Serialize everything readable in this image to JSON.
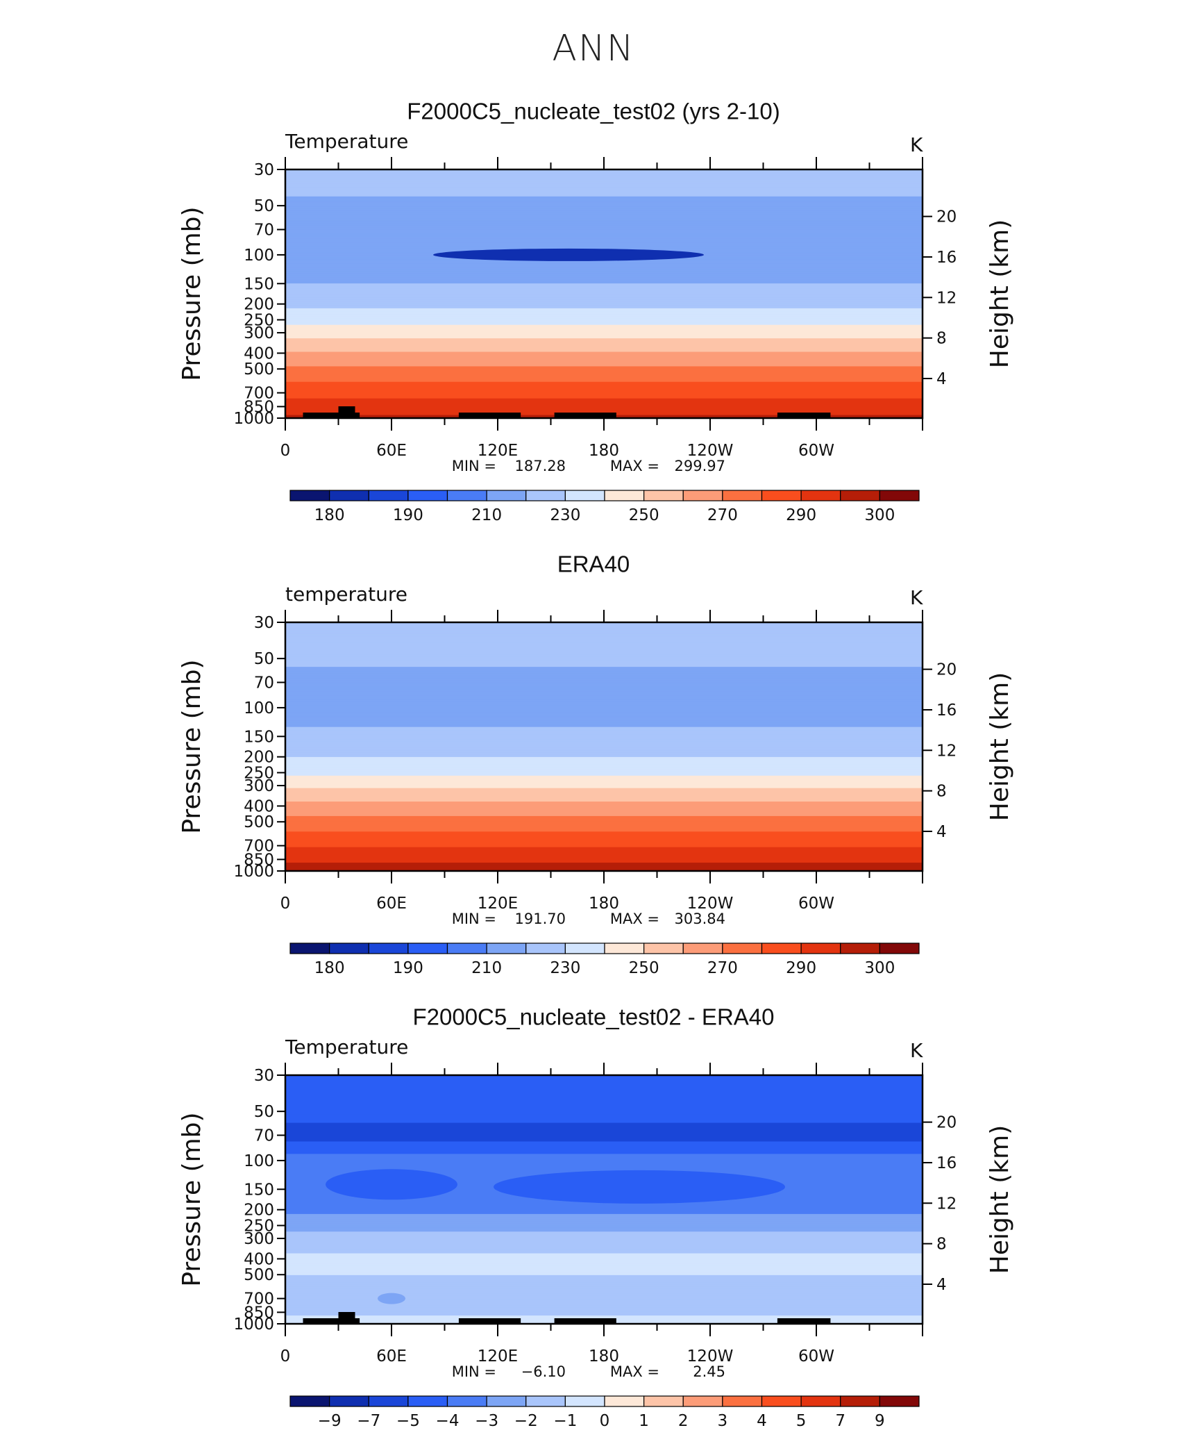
{
  "page_title": "ANN",
  "panel_top_label": "K",
  "axes": {
    "y_left_label": "Pressure (mb)",
    "y_right_label": "Height (km)",
    "pressure_ticks": [
      "30",
      "50",
      "70",
      "100",
      "150",
      "200",
      "250",
      "300",
      "400",
      "500",
      "700",
      "850",
      "1000"
    ],
    "height_ticks": [
      "20",
      "16",
      "12",
      "8",
      "4"
    ],
    "lon_ticks": [
      "0",
      "60E",
      "120E",
      "180",
      "120W",
      "60W"
    ]
  },
  "chart_data": [
    {
      "type": "heatmap",
      "title": "F2000C5_nucleate_test02 (yrs 2-10)",
      "variable_label": "Temperature",
      "units": "K",
      "min_label": "MIN",
      "max_label": "MAX",
      "min": "187.28",
      "max": "299.97",
      "colorbar_labels": [
        "180",
        "190",
        "210",
        "230",
        "250",
        "270",
        "290",
        "300"
      ],
      "colors": [
        "#0a1570",
        "#0f2fb0",
        "#1a46d8",
        "#2a5ef5",
        "#4a7cf5",
        "#7da5f5",
        "#a9c5fb",
        "#d3e5fe",
        "#fde8d8",
        "#fdc4a8",
        "#fc9c78",
        "#fb7040",
        "#f94e1e",
        "#e33410",
        "#b51e08",
        "#820808"
      ],
      "profile_K": [
        {
          "p": "30",
          "t": 213
        },
        {
          "p": "50",
          "t": 209
        },
        {
          "p": "70",
          "t": 206
        },
        {
          "p": "100",
          "t": 204
        },
        {
          "p": "150",
          "t": 210
        },
        {
          "p": "200",
          "t": 218
        },
        {
          "p": "250",
          "t": 226
        },
        {
          "p": "300",
          "t": 236
        },
        {
          "p": "400",
          "t": 251
        },
        {
          "p": "500",
          "t": 262
        },
        {
          "p": "700",
          "t": 277
        },
        {
          "p": "850",
          "t": 285
        },
        {
          "p": "1000",
          "t": 292
        }
      ]
    },
    {
      "type": "heatmap",
      "title": "ERA40",
      "variable_label": "temperature",
      "units": "K",
      "min_label": "MIN",
      "max_label": "MAX",
      "min": "191.70",
      "max": "303.84",
      "colorbar_labels": [
        "180",
        "190",
        "210",
        "230",
        "250",
        "270",
        "290",
        "300"
      ],
      "colors": [
        "#0a1570",
        "#0f2fb0",
        "#1a46d8",
        "#2a5ef5",
        "#4a7cf5",
        "#7da5f5",
        "#a9c5fb",
        "#d3e5fe",
        "#fde8d8",
        "#fdc4a8",
        "#fc9c78",
        "#fb7040",
        "#f94e1e",
        "#e33410",
        "#b51e08",
        "#820808"
      ],
      "profile_K": [
        {
          "p": "30",
          "t": 216
        },
        {
          "p": "50",
          "t": 211
        },
        {
          "p": "70",
          "t": 208
        },
        {
          "p": "100",
          "t": 206
        },
        {
          "p": "150",
          "t": 212
        },
        {
          "p": "200",
          "t": 220
        },
        {
          "p": "250",
          "t": 228
        },
        {
          "p": "300",
          "t": 238
        },
        {
          "p": "400",
          "t": 253
        },
        {
          "p": "500",
          "t": 264
        },
        {
          "p": "700",
          "t": 279
        },
        {
          "p": "850",
          "t": 288
        },
        {
          "p": "1000",
          "t": 295
        }
      ]
    },
    {
      "type": "heatmap",
      "title": "F2000C5_nucleate_test02 - ERA40",
      "variable_label": "Temperature",
      "units": "K",
      "min_label": "MIN",
      "max_label": "MAX",
      "min": "−6.10",
      "max": "2.45",
      "colorbar_labels": [
        "−9",
        "−7",
        "−5",
        "−4",
        "−3",
        "−2",
        "−1",
        "0",
        "1",
        "2",
        "3",
        "4",
        "5",
        "7",
        "9"
      ],
      "colors": [
        "#0a1570",
        "#0f2fb0",
        "#1a46d8",
        "#2a5ef5",
        "#4a7cf5",
        "#7da5f5",
        "#a9c5fb",
        "#d3e5fe",
        "#fde8d8",
        "#fdc4a8",
        "#fc9c78",
        "#fb7040",
        "#f94e1e",
        "#e33410",
        "#b51e08",
        "#820808"
      ],
      "profile_K": [
        {
          "p": "30",
          "t": -4.5
        },
        {
          "p": "50",
          "t": -4.5
        },
        {
          "p": "70",
          "t": -5.5
        },
        {
          "p": "100",
          "t": -3.5
        },
        {
          "p": "150",
          "t": -3.5
        },
        {
          "p": "200",
          "t": -3.2
        },
        {
          "p": "250",
          "t": -2.5
        },
        {
          "p": "300",
          "t": -1.5
        },
        {
          "p": "400",
          "t": -0.8
        },
        {
          "p": "500",
          "t": -1.0
        },
        {
          "p": "700",
          "t": -1.5
        },
        {
          "p": "850",
          "t": -1.2
        },
        {
          "p": "1000",
          "t": -0.5
        }
      ]
    }
  ]
}
